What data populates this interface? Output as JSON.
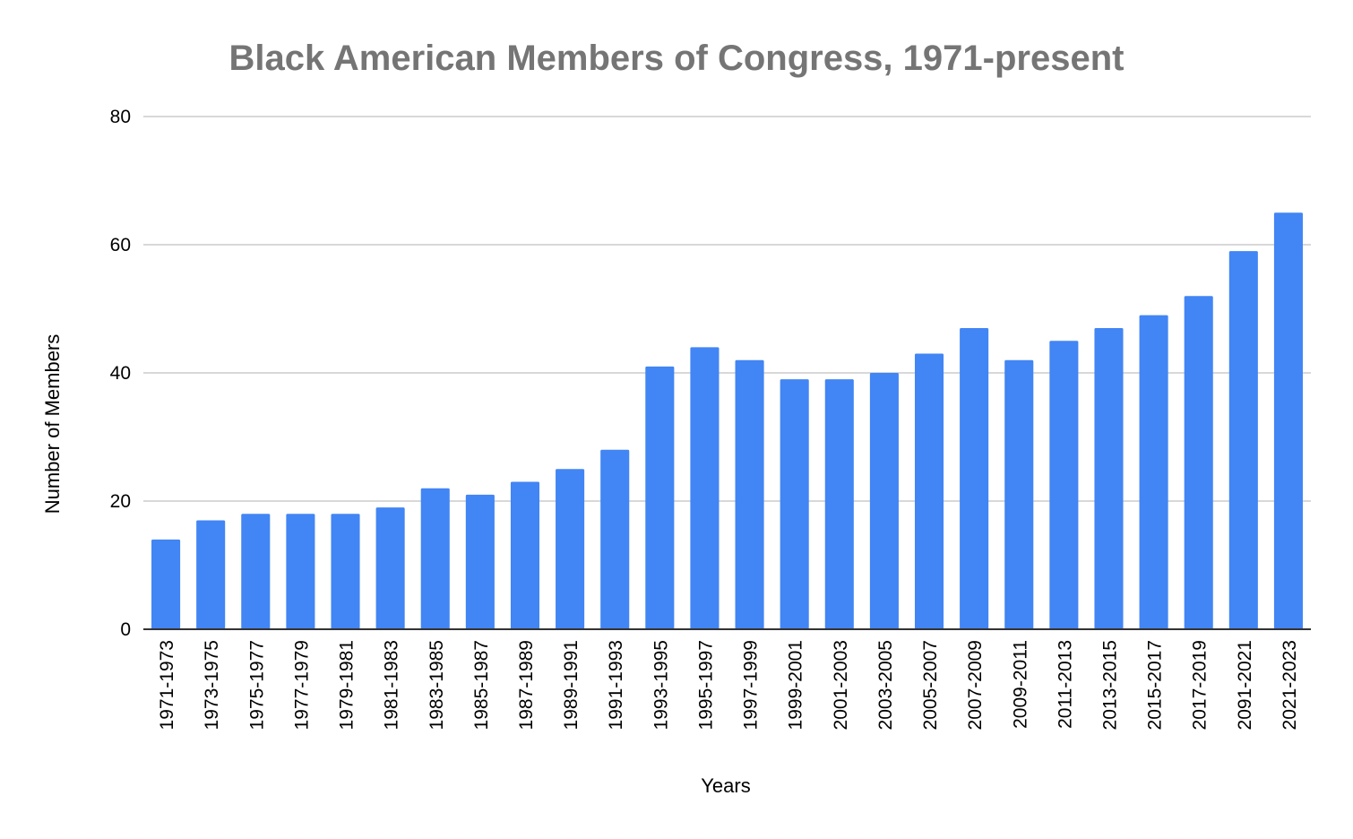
{
  "chart_data": {
    "type": "bar",
    "title": "Black American Members of Congress, 1971-present",
    "xlabel": "Years",
    "ylabel": "Number of Members",
    "ylim": [
      0,
      80
    ],
    "yticks": [
      0,
      20,
      40,
      60,
      80
    ],
    "grid": true,
    "legend": "none",
    "bar_color": "#4285f4",
    "categories": [
      "1971-1973",
      "1973-1975",
      "1975-1977",
      "1977-1979",
      "1979-1981",
      "1981-1983",
      "1983-1985",
      "1985-1987",
      "1987-1989",
      "1989-1991",
      "1991-1993",
      "1993-1995",
      "1995-1997",
      "1997-1999",
      "1999-2001",
      "2001-2003",
      "2003-2005",
      "2005-2007",
      "2007-2009",
      "2009-2011",
      "2011-2013",
      "2013-2015",
      "2015-2017",
      "2017-2019",
      "2091-2021",
      "2021-2023"
    ],
    "values": [
      14,
      17,
      18,
      18,
      18,
      19,
      22,
      21,
      23,
      25,
      28,
      41,
      44,
      42,
      39,
      39,
      40,
      43,
      47,
      42,
      45,
      47,
      49,
      52,
      59,
      65
    ]
  }
}
